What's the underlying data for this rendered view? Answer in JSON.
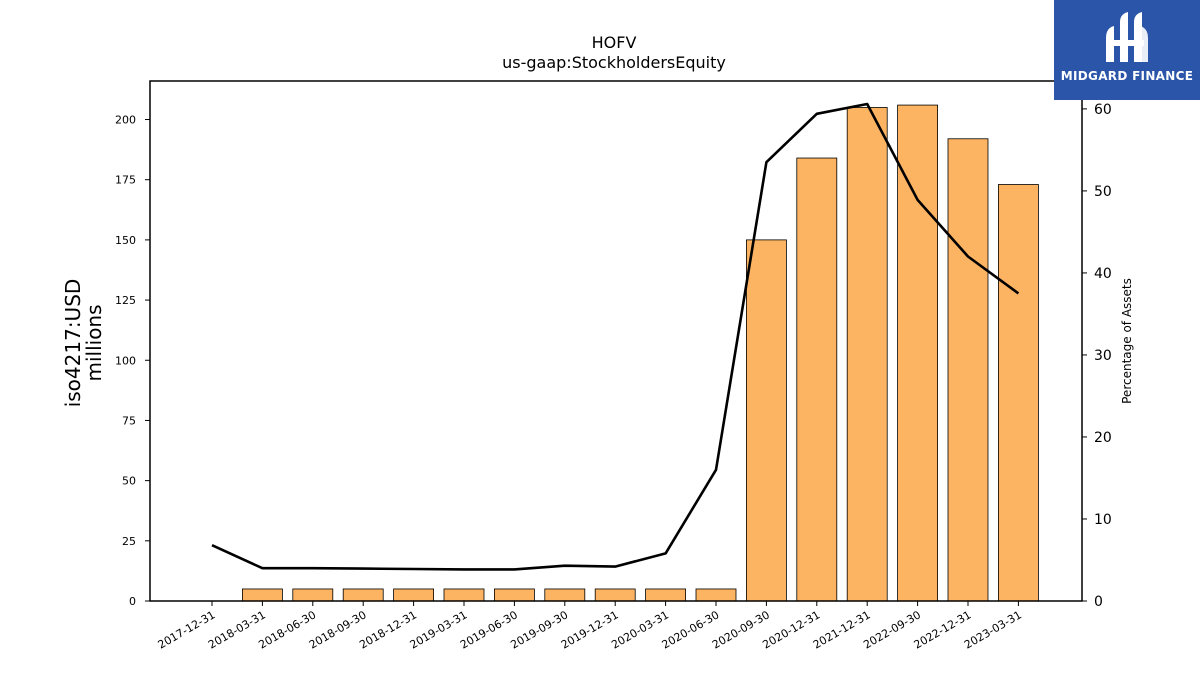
{
  "brand": {
    "name": "MIDGARD FINANCE",
    "bg_color": "#2a55a8"
  },
  "chart_data": {
    "type": "bar+line",
    "title": "HOFV",
    "subtitle": "us-gaap:StockholdersEquity",
    "ylabel_left": [
      "iso4217:USD",
      "millions"
    ],
    "ylabel_right": "Percentage of Assets",
    "categories": [
      "2017-12-31",
      "2018-03-31",
      "2018-06-30",
      "2018-09-30",
      "2018-12-31",
      "2019-03-31",
      "2019-06-30",
      "2019-09-30",
      "2019-12-31",
      "2020-03-31",
      "2020-06-30",
      "2020-09-30",
      "2020-12-31",
      "2021-12-31",
      "2022-09-30",
      "2022-12-31",
      "2023-03-31"
    ],
    "bars": [
      0,
      5,
      5,
      5,
      5,
      5,
      5,
      5,
      5,
      5,
      5,
      150,
      184,
      205,
      206,
      192,
      173
    ],
    "line": [
      6.8,
      4.0,
      4.0,
      3.95,
      3.9,
      3.85,
      3.85,
      4.3,
      4.2,
      5.8,
      16.0,
      53.5,
      59.4,
      60.6,
      48.9,
      42.0,
      37.5
    ],
    "ylim_left": [
      0,
      216
    ],
    "yticks_left": [
      0,
      25,
      50,
      75,
      100,
      125,
      150,
      175,
      200
    ],
    "ylim_right": [
      0,
      63.4
    ],
    "yticks_right": [
      0,
      10,
      20,
      30,
      40,
      50,
      60
    ],
    "bar_color": "#fdb462",
    "line_color": "#000000",
    "grid": false,
    "legend": "none"
  }
}
